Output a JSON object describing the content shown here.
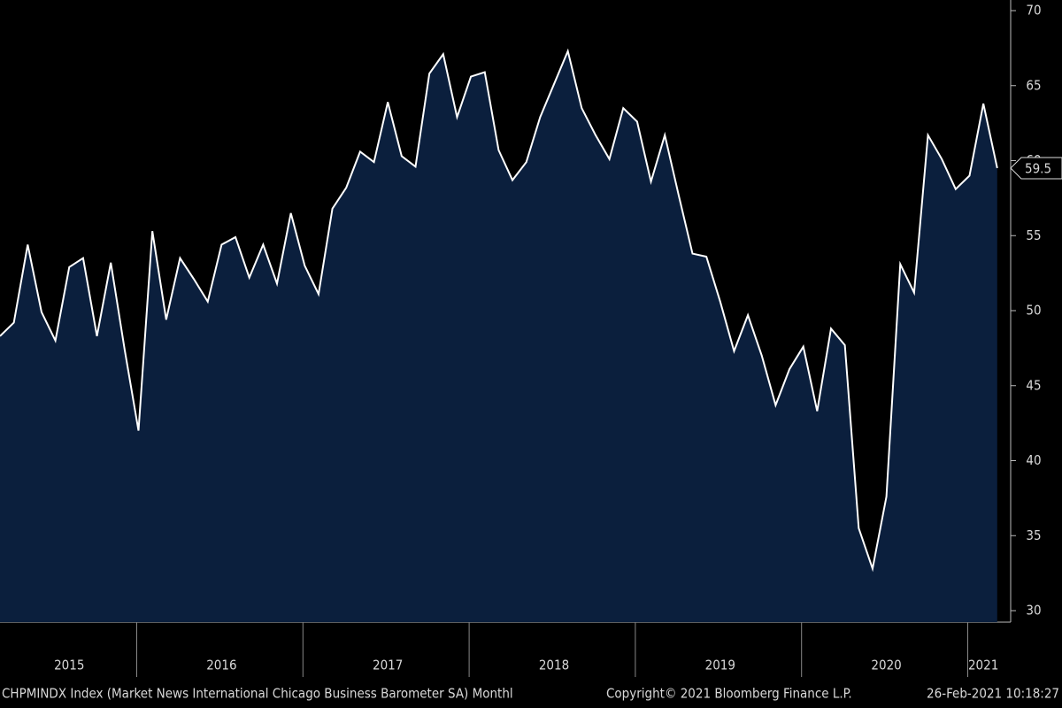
{
  "chart_data": {
    "type": "area",
    "categories": [
      null,
      null,
      null,
      null,
      null,
      "2015",
      null,
      null,
      null,
      null,
      null,
      null,
      null,
      null,
      null,
      null,
      "2016",
      null,
      null,
      null,
      null,
      null,
      null,
      null,
      null,
      null,
      null,
      null,
      "2017",
      null,
      null,
      null,
      null,
      null,
      null,
      null,
      null,
      null,
      null,
      null,
      "2018",
      null,
      null,
      null,
      null,
      null,
      null,
      null,
      null,
      null,
      null,
      null,
      "2019",
      null,
      null,
      null,
      null,
      null,
      null,
      null,
      null,
      null,
      null,
      null,
      "2020",
      null,
      null,
      null,
      null,
      null,
      null,
      "2021",
      null
    ],
    "series": [
      {
        "name": "CHPMINDX Index",
        "color": "#ffffff",
        "fill": "#0b1f3d",
        "values": [
          48.3,
          49.2,
          54.4,
          49.9,
          48.0,
          52.9,
          53.5,
          48.3,
          53.2,
          47.4,
          42.0,
          55.3,
          49.4,
          53.5,
          52.1,
          50.6,
          54.4,
          54.9,
          52.2,
          54.4,
          51.8,
          56.5,
          53.0,
          51.1,
          56.8,
          58.2,
          60.6,
          59.9,
          63.9,
          60.3,
          59.6,
          65.8,
          67.1,
          62.9,
          65.6,
          65.9,
          60.7,
          58.7,
          59.9,
          62.9,
          65.1,
          67.3,
          63.5,
          61.7,
          60.1,
          63.5,
          62.6,
          58.6,
          61.7,
          57.7,
          53.8,
          53.6,
          50.6,
          47.3,
          49.7,
          47.0,
          43.7,
          46.1,
          47.6,
          43.3,
          48.8,
          47.7,
          35.5,
          32.8,
          37.6,
          53.1,
          51.2,
          61.7,
          60.1,
          58.1,
          59.0,
          63.8,
          59.5
        ]
      }
    ],
    "ylim": [
      30,
      70
    ],
    "yticks": [
      30,
      35,
      40,
      45,
      50,
      55,
      60,
      65,
      70
    ],
    "footer": {
      "source": "CHPMINDX Index (Market News International Chicago Business Barometer SA)  Monthl",
      "copyright": "Copyright© 2021 Bloomberg Finance L.P.",
      "timestamp": "26-Feb-2021 10:18:27"
    }
  }
}
